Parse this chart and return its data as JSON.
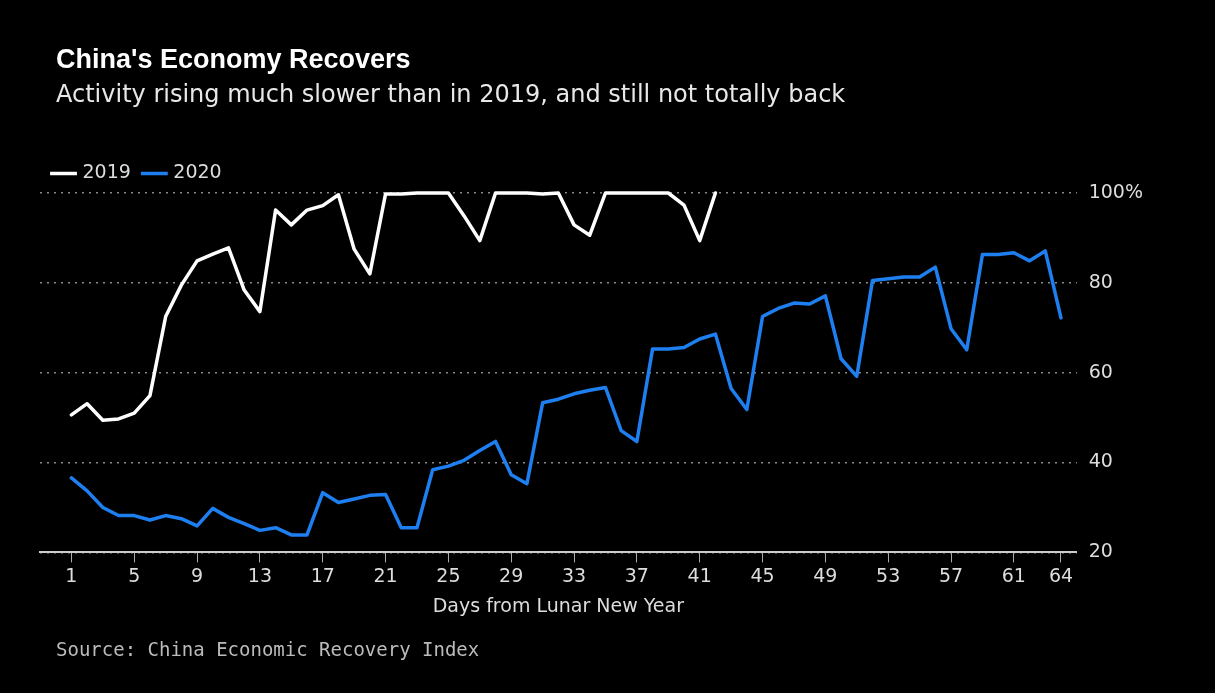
{
  "chart_data": {
    "type": "line",
    "title": "China's Economy Recovers",
    "subtitle": "Activity rising much slower than in 2019, and still not totally back",
    "xlabel": "Days from Lunar New Year",
    "annotations": [
      "Source: China Economic Recovery Index"
    ],
    "xlim": [
      -1,
      65
    ],
    "xticks": [
      1,
      5,
      9,
      13,
      17,
      21,
      25,
      29,
      33,
      37,
      41,
      45,
      49,
      53,
      57,
      61,
      64
    ],
    "ylim": [
      20,
      100
    ],
    "yticks": [
      20,
      40,
      60,
      80,
      {
        "value": 100,
        "label": "100%"
      }
    ],
    "grid": "y",
    "legend": "top left",
    "marker": "none",
    "series": [
      {
        "name": "2019",
        "color": "#ffffff",
        "x": [
          1,
          2,
          3,
          4,
          5,
          6,
          7,
          8,
          9,
          10,
          11,
          12,
          13,
          14,
          15,
          16,
          17,
          18,
          19,
          20,
          21,
          22,
          23,
          24,
          25,
          26,
          27,
          28,
          29,
          30,
          31,
          32,
          33,
          34,
          35,
          36,
          37,
          38,
          39,
          40,
          41,
          42
        ],
        "values": [
          50.6,
          53.1,
          49.4,
          49.7,
          51,
          54.9,
          72.5,
          79.5,
          84.9,
          86.4,
          87.8,
          78.4,
          73.6,
          96.2,
          92.9,
          96.2,
          97.2,
          99.6,
          87.5,
          82,
          99.8,
          99.8,
          100,
          100,
          100,
          94.9,
          89.4,
          100,
          100,
          100,
          99.8,
          100,
          92.9,
          90.6,
          100,
          100,
          100,
          100,
          100,
          97.3,
          89.4,
          100
        ]
      },
      {
        "name": "2020",
        "color": "#1e7ff0",
        "x": [
          1,
          2,
          3,
          4,
          5,
          6,
          7,
          8,
          9,
          10,
          11,
          12,
          13,
          14,
          15,
          16,
          17,
          18,
          19,
          20,
          21,
          22,
          23,
          24,
          25,
          26,
          27,
          28,
          29,
          30,
          31,
          32,
          33,
          34,
          35,
          36,
          37,
          38,
          39,
          40,
          41,
          42,
          43,
          44,
          45,
          46,
          47,
          48,
          49,
          50,
          51,
          52,
          53,
          54,
          55,
          56,
          57,
          58,
          59,
          60,
          61,
          62,
          63,
          64
        ],
        "values": [
          36.6,
          33.7,
          30,
          28.2,
          28.2,
          27.2,
          28.2,
          27.5,
          25.9,
          29.8,
          27.8,
          26.4,
          24.9,
          25.5,
          23.9,
          23.9,
          33.3,
          31.1,
          31.9,
          32.7,
          32.9,
          25.5,
          25.5,
          38.4,
          39.2,
          40.5,
          42.7,
          44.7,
          37.3,
          35.3,
          53.3,
          54.1,
          55.3,
          56.1,
          56.7,
          47.1,
          44.7,
          65.3,
          65.3,
          65.6,
          67.5,
          68.6,
          56.5,
          51.8,
          72.5,
          74.3,
          75.5,
          75.3,
          77.1,
          63.1,
          59.2,
          80.5,
          80.9,
          81.3,
          81.3,
          83.5,
          69.8,
          65.1,
          86.3,
          86.3,
          86.7,
          84.9,
          87.1,
          72.2
        ]
      }
    ]
  }
}
